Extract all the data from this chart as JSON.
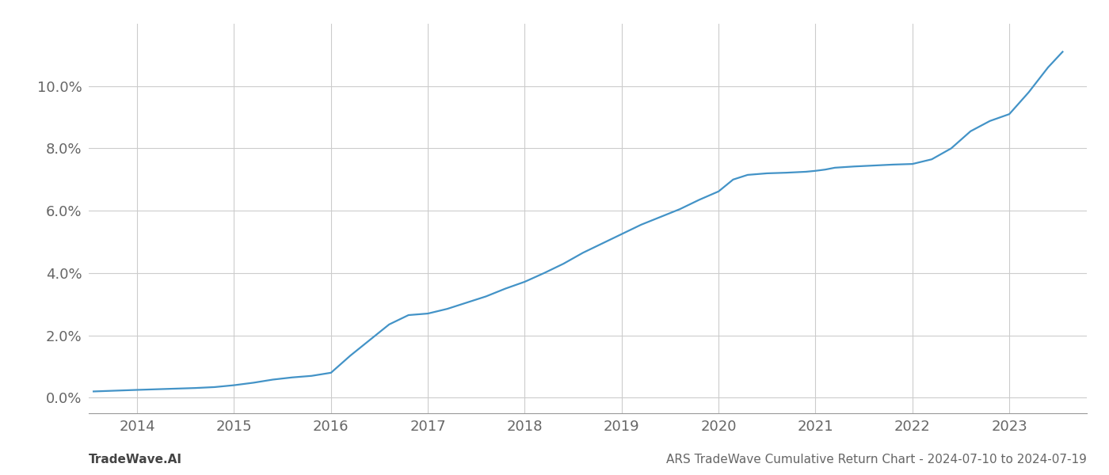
{
  "title": "",
  "bottom_left_text": "TradeWave.AI",
  "bottom_right_text": "ARS TradeWave Cumulative Return Chart - 2024-07-10 to 2024-07-19",
  "line_color": "#4393c7",
  "background_color": "#ffffff",
  "grid_color": "#cccccc",
  "x_values": [
    2013.55,
    2014.0,
    2014.2,
    2014.4,
    2014.6,
    2014.8,
    2015.0,
    2015.2,
    2015.4,
    2015.6,
    2015.8,
    2016.0,
    2016.2,
    2016.4,
    2016.6,
    2016.8,
    2017.0,
    2017.2,
    2017.4,
    2017.6,
    2017.8,
    2018.0,
    2018.2,
    2018.4,
    2018.6,
    2018.8,
    2019.0,
    2019.2,
    2019.4,
    2019.6,
    2019.8,
    2020.0,
    2020.15,
    2020.3,
    2020.5,
    2020.7,
    2020.9,
    2021.0,
    2021.1,
    2021.2,
    2021.4,
    2021.6,
    2021.8,
    2022.0,
    2022.2,
    2022.4,
    2022.6,
    2022.8,
    2023.0,
    2023.2,
    2023.4,
    2023.55
  ],
  "y_values": [
    0.2,
    0.25,
    0.27,
    0.29,
    0.31,
    0.34,
    0.4,
    0.48,
    0.58,
    0.65,
    0.7,
    0.8,
    1.35,
    1.85,
    2.35,
    2.65,
    2.7,
    2.85,
    3.05,
    3.25,
    3.5,
    3.72,
    4.0,
    4.3,
    4.65,
    4.95,
    5.25,
    5.55,
    5.8,
    6.05,
    6.35,
    6.62,
    7.0,
    7.15,
    7.2,
    7.22,
    7.25,
    7.28,
    7.32,
    7.38,
    7.42,
    7.45,
    7.48,
    7.5,
    7.65,
    8.0,
    8.55,
    8.88,
    9.1,
    9.8,
    10.6,
    11.1
  ],
  "xlim": [
    2013.5,
    2023.8
  ],
  "ylim": [
    -0.5,
    12.0
  ],
  "yticks": [
    0.0,
    2.0,
    4.0,
    6.0,
    8.0,
    10.0
  ],
  "xticks": [
    2014,
    2015,
    2016,
    2017,
    2018,
    2019,
    2020,
    2021,
    2022,
    2023
  ],
  "line_width": 1.6,
  "font_size_ticks": 13,
  "font_size_footer": 11,
  "tick_color": "#666666",
  "spine_color": "#999999"
}
